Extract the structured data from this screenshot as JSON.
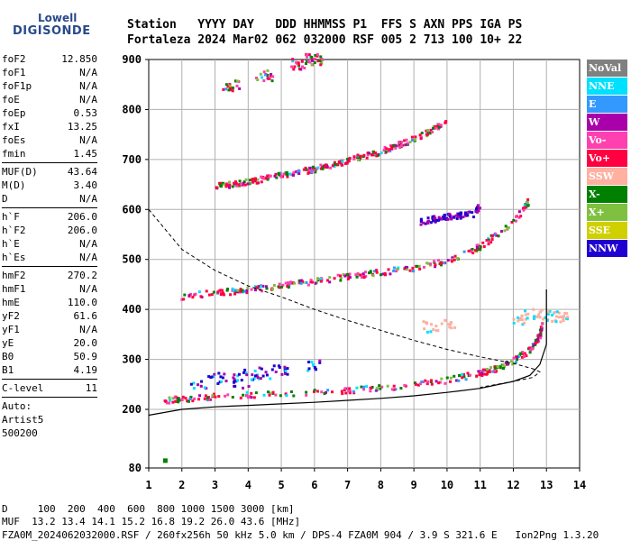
{
  "logo": {
    "brand_top": "Lowell",
    "brand_main": "DIGISONDE"
  },
  "header": {
    "line1": "Station   YYYY DAY   DDD HHMMSS P1  FFS S AXN PPS IGA PS",
    "line2": "Fortaleza 2024 Mar02 062 032000 RSF 005 2 713 100 10+ 22"
  },
  "params": [
    {
      "type": "kv",
      "name": "foF2",
      "value": "12.850"
    },
    {
      "type": "kv",
      "name": "foF1",
      "value": "N/A"
    },
    {
      "type": "kv",
      "name": "foF1p",
      "value": "N/A"
    },
    {
      "type": "kv",
      "name": "foE",
      "value": "N/A"
    },
    {
      "type": "kv",
      "name": "foEp",
      "value": "0.53"
    },
    {
      "type": "kv",
      "name": "fxI",
      "value": "13.25"
    },
    {
      "type": "kv",
      "name": "foEs",
      "value": "N/A"
    },
    {
      "type": "kv",
      "name": "fmin",
      "value": "1.45"
    },
    {
      "type": "div"
    },
    {
      "type": "kv",
      "name": "MUF(D)",
      "value": "43.64"
    },
    {
      "type": "kv",
      "name": "M(D)",
      "value": "3.40"
    },
    {
      "type": "kv",
      "name": "D",
      "value": "N/A"
    },
    {
      "type": "div"
    },
    {
      "type": "kv",
      "name": "h`F",
      "value": "206.0"
    },
    {
      "type": "kv",
      "name": "h`F2",
      "value": "206.0"
    },
    {
      "type": "kv",
      "name": "h`E",
      "value": "N/A"
    },
    {
      "type": "kv",
      "name": "h`Es",
      "value": "N/A"
    },
    {
      "type": "div"
    },
    {
      "type": "kv",
      "name": "hmF2",
      "value": "270.2"
    },
    {
      "type": "kv",
      "name": "hmF1",
      "value": "N/A"
    },
    {
      "type": "kv",
      "name": "hmE",
      "value": "110.0"
    },
    {
      "type": "kv",
      "name": "yF2",
      "value": "61.6"
    },
    {
      "type": "kv",
      "name": "yF1",
      "value": "N/A"
    },
    {
      "type": "kv",
      "name": "yE",
      "value": "20.0"
    },
    {
      "type": "kv",
      "name": "B0",
      "value": "50.9"
    },
    {
      "type": "kv",
      "name": "B1",
      "value": "4.19"
    },
    {
      "type": "div"
    },
    {
      "type": "kv",
      "name": "C-level",
      "value": "11"
    },
    {
      "type": "div"
    },
    {
      "type": "text",
      "text": "Auto:"
    },
    {
      "type": "text",
      "text": "Artist5"
    },
    {
      "type": "text",
      "text": "500200"
    }
  ],
  "legend": [
    {
      "label": "NoVal",
      "color": "#808080"
    },
    {
      "label": "NNE",
      "color": "#00e0ff"
    },
    {
      "label": "E",
      "color": "#3399ff"
    },
    {
      "label": "W",
      "color": "#aa00aa"
    },
    {
      "label": "Vo-",
      "color": "#ff40b0"
    },
    {
      "label": "Vo+",
      "color": "#ff0040"
    },
    {
      "label": "SSW",
      "color": "#ffb0a0"
    },
    {
      "label": "X-",
      "color": "#008000"
    },
    {
      "label": "X+",
      "color": "#80c040"
    },
    {
      "label": "SSE",
      "color": "#d0d000"
    },
    {
      "label": "NNW",
      "color": "#2000d0"
    }
  ],
  "footer": {
    "line1": "D     100  200  400  600  800 1000 1500 3000 [km]",
    "line2": "MUF  13.2 13.4 14.1 15.2 16.8 19.2 26.0 43.6 [MHz]",
    "line3": "FZA0M_2024062032000.RSF / 260fx256h 50 kHz 5.0 km / DPS-4 FZA0M 904 / 3.9 S 321.6 E   Ion2Png 1.3.20"
  },
  "chart_data": {
    "type": "scatter",
    "title": "",
    "xlabel": "",
    "ylabel": "",
    "xlim": [
      1,
      14
    ],
    "ylim": [
      80,
      900
    ],
    "x_ticks": [
      1,
      2,
      3,
      4,
      5,
      6,
      7,
      8,
      9,
      10,
      11,
      12,
      13,
      14
    ],
    "y_ticks": [
      80,
      200,
      300,
      400,
      500,
      600,
      700,
      800,
      900
    ],
    "y_scale": "piecewise",
    "grid": true,
    "legend_position": "right",
    "traces": [
      {
        "layer": "F1 echo",
        "points": [
          [
            1.5,
            218
          ],
          [
            2.0,
            220
          ],
          [
            3.0,
            226
          ],
          [
            4.0,
            228
          ],
          [
            5.0,
            231
          ],
          [
            6.0,
            234
          ],
          [
            7.0,
            238
          ],
          [
            8.0,
            242
          ],
          [
            9.0,
            248
          ],
          [
            10.0,
            258
          ],
          [
            11.0,
            272
          ],
          [
            11.5,
            282
          ],
          [
            12.0,
            296
          ],
          [
            12.5,
            318
          ],
          [
            12.8,
            345
          ],
          [
            12.9,
            372
          ]
        ]
      },
      {
        "layer": "F2 echo",
        "points": [
          [
            2.0,
            425
          ],
          [
            3.0,
            433
          ],
          [
            4.0,
            438
          ],
          [
            5.0,
            447
          ],
          [
            6.0,
            456
          ],
          [
            7.0,
            466
          ],
          [
            8.0,
            474
          ],
          [
            9.0,
            482
          ],
          [
            10.0,
            497
          ],
          [
            11.0,
            525
          ],
          [
            12.0,
            572
          ],
          [
            12.5,
            620
          ]
        ]
      },
      {
        "layer": "F3 echo",
        "points": [
          [
            3.0,
            645
          ],
          [
            4.0,
            655
          ],
          [
            5.0,
            668
          ],
          [
            6.0,
            680
          ],
          [
            7.0,
            697
          ],
          [
            8.0,
            715
          ],
          [
            9.0,
            740
          ],
          [
            10.0,
            775
          ]
        ]
      },
      {
        "layer": "F4 echo",
        "points": [
          [
            3.5,
            848
          ],
          [
            4.5,
            868
          ],
          [
            5.5,
            890
          ],
          [
            6.0,
            900
          ]
        ]
      },
      {
        "layer": "mid echoes",
        "points": [
          [
            3.0,
            262
          ],
          [
            3.5,
            266
          ],
          [
            4.0,
            268
          ],
          [
            4.5,
            272
          ],
          [
            5.0,
            278
          ],
          [
            6.0,
            286
          ],
          [
            2.5,
            246
          ],
          [
            3.8,
            250
          ]
        ]
      },
      {
        "layer": "oblique echoes",
        "points": [
          [
            9.2,
            575
          ],
          [
            9.6,
            580
          ],
          [
            10.0,
            585
          ],
          [
            10.4,
            588
          ],
          [
            10.8,
            590
          ],
          [
            11.0,
            605
          ]
        ]
      },
      {
        "layer": "spread echoes",
        "points": [
          [
            12.2,
            380
          ],
          [
            12.6,
            390
          ],
          [
            13.0,
            388
          ],
          [
            13.4,
            385
          ],
          [
            9.5,
            365
          ],
          [
            10.0,
            370
          ]
        ]
      }
    ],
    "profile_dashed": [
      [
        1.0,
        600
      ],
      [
        2.0,
        520
      ],
      [
        3.0,
        478
      ],
      [
        4.0,
        447
      ],
      [
        5.0,
        425
      ],
      [
        6.0,
        400
      ],
      [
        7.0,
        378
      ],
      [
        8.0,
        358
      ],
      [
        9.0,
        338
      ],
      [
        10.0,
        320
      ],
      [
        11.0,
        305
      ],
      [
        12.0,
        292
      ],
      [
        12.6,
        281
      ],
      [
        12.8,
        275
      ],
      [
        12.6,
        264
      ],
      [
        12.0,
        256
      ],
      [
        11.0,
        244
      ]
    ],
    "profile_solid": [
      [
        1.0,
        188
      ],
      [
        2.0,
        200
      ],
      [
        3.0,
        205
      ],
      [
        4.0,
        208
      ],
      [
        5.0,
        211
      ],
      [
        6.0,
        214
      ],
      [
        7.0,
        218
      ],
      [
        8.0,
        222
      ],
      [
        9.0,
        227
      ],
      [
        10.0,
        234
      ],
      [
        11.0,
        242
      ],
      [
        12.0,
        256
      ],
      [
        12.5,
        268
      ],
      [
        12.8,
        290
      ],
      [
        13.0,
        330
      ],
      [
        13.0,
        440
      ]
    ],
    "isolated_point": [
      1.5,
      95
    ]
  }
}
